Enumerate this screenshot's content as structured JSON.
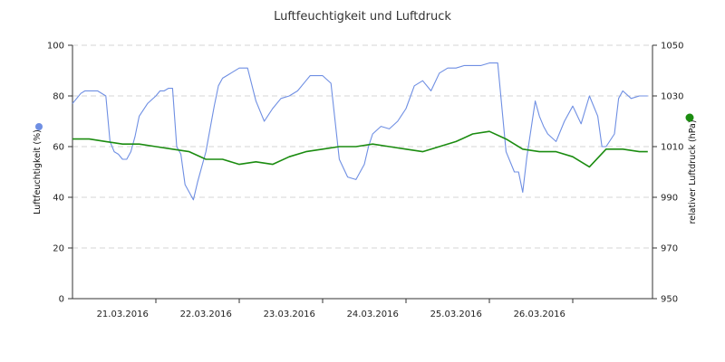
{
  "chart_data": {
    "type": "line",
    "title": "Luftfeuchtigkeit und Luftdruck",
    "left_axis": {
      "label": "Luftfeuchtigkeit (%)",
      "min": 0,
      "max": 100,
      "ticks": [
        "0",
        "20",
        "40",
        "60",
        "80",
        "100"
      ]
    },
    "right_axis": {
      "label": "relativer Luftdruck (hPa)",
      "min": 950,
      "max": 1050,
      "ticks": [
        "950",
        "970",
        "990",
        "1010",
        "1030",
        "1050"
      ]
    },
    "x_ticks": [
      "21.03.2016",
      "22.03.2016",
      "23.03.2016",
      "24.03.2016",
      "25.03.2016",
      "26.03.2016"
    ],
    "x_range_days": [
      0,
      6.9
    ],
    "grid": true,
    "legend": "markers beside axis titles",
    "series": [
      {
        "name": "Luftfeuchtigkeit (%)",
        "axis": "left",
        "color": "#6f8fe3",
        "x": [
          0.0,
          0.05,
          0.1,
          0.15,
          0.2,
          0.3,
          0.4,
          0.45,
          0.5,
          0.55,
          0.6,
          0.65,
          0.7,
          0.75,
          0.8,
          0.9,
          1.0,
          1.05,
          1.1,
          1.15,
          1.2,
          1.25,
          1.3,
          1.35,
          1.4,
          1.45,
          1.5,
          1.6,
          1.7,
          1.75,
          1.8,
          1.85,
          1.9,
          2.0,
          2.1,
          2.2,
          2.3,
          2.4,
          2.5,
          2.6,
          2.7,
          2.8,
          2.85,
          2.9,
          2.95,
          3.0,
          3.1,
          3.2,
          3.3,
          3.4,
          3.45,
          3.5,
          3.55,
          3.6,
          3.7,
          3.8,
          3.9,
          4.0,
          4.1,
          4.2,
          4.3,
          4.4,
          4.5,
          4.6,
          4.7,
          4.8,
          4.9,
          5.0,
          5.1,
          5.2,
          5.3,
          5.35,
          5.4,
          5.45,
          5.5,
          5.55,
          5.6,
          5.65,
          5.7,
          5.8,
          5.9,
          6.0,
          6.1,
          6.2,
          6.3,
          6.35,
          6.4,
          6.5,
          6.55,
          6.6,
          6.7,
          6.8,
          6.9
        ],
        "y": [
          77,
          79,
          81,
          82,
          82,
          82,
          80,
          62,
          58,
          57,
          55,
          55,
          58,
          64,
          72,
          77,
          80,
          82,
          82,
          83,
          83,
          60,
          57,
          45,
          42,
          39,
          46,
          58,
          76,
          84,
          87,
          88,
          89,
          91,
          91,
          78,
          70,
          75,
          79,
          80,
          82,
          86,
          88,
          88,
          88,
          88,
          85,
          55,
          48,
          47,
          50,
          53,
          60,
          65,
          68,
          67,
          70,
          75,
          84,
          86,
          82,
          89,
          91,
          91,
          92,
          92,
          92,
          93,
          93,
          58,
          50,
          50,
          42,
          56,
          67,
          78,
          72,
          68,
          65,
          62,
          70,
          76,
          69,
          80,
          72,
          60,
          60,
          65,
          79,
          82,
          79,
          80,
          80
        ]
      },
      {
        "name": "relativer Luftdruck (hPa)",
        "axis": "right",
        "color": "#1b8c10",
        "x": [
          0.0,
          0.2,
          0.4,
          0.6,
          0.8,
          1.0,
          1.2,
          1.4,
          1.6,
          1.8,
          2.0,
          2.2,
          2.4,
          2.6,
          2.8,
          3.0,
          3.2,
          3.4,
          3.6,
          3.8,
          4.0,
          4.2,
          4.4,
          4.6,
          4.8,
          5.0,
          5.2,
          5.4,
          5.6,
          5.8,
          6.0,
          6.2,
          6.4,
          6.6,
          6.8,
          6.9
        ],
        "y": [
          1013,
          1013,
          1012,
          1011,
          1011,
          1010,
          1009,
          1008,
          1005,
          1005,
          1003,
          1004,
          1003,
          1006,
          1008,
          1009,
          1010,
          1010,
          1011,
          1010,
          1009,
          1008,
          1010,
          1012,
          1015,
          1016,
          1013,
          1009,
          1008,
          1008,
          1006,
          1002,
          1009,
          1009,
          1008,
          1008
        ]
      }
    ]
  }
}
